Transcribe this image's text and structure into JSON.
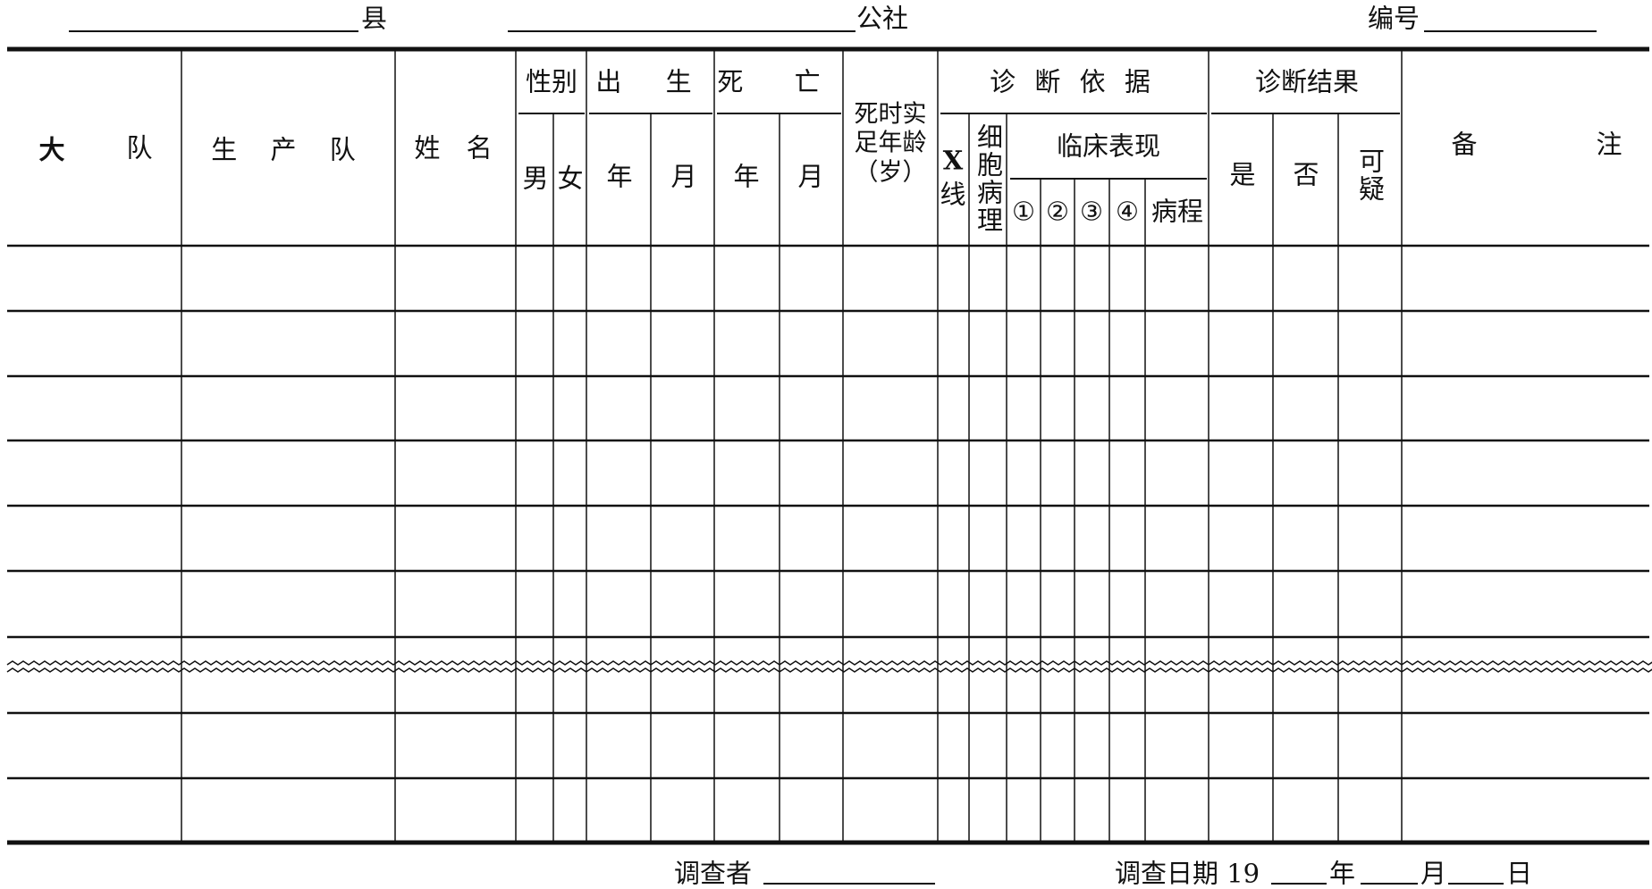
{
  "header": {
    "county": "县",
    "commune": "公社",
    "serial_no": "编号"
  },
  "columns": {
    "brigade": [
      "大",
      "队"
    ],
    "team": "生 产 队",
    "name": "姓 名",
    "sex": "性别",
    "male": "男",
    "female": "女",
    "birth": "出 生",
    "birth_year": "年",
    "birth_month": "月",
    "death": "死 亡",
    "death_year": "年",
    "death_month": "月",
    "age_at_death": [
      "死时实",
      "足年龄",
      "（岁）"
    ],
    "diag_basis": "诊 断 依 据",
    "xray_x": "X",
    "xray_line": "线",
    "cytopathology": "细胞病理",
    "clinical": "临床表现",
    "clinical_items": [
      "①",
      "②",
      "③",
      "④"
    ],
    "course": "病程",
    "diag_result": "诊断结果",
    "yes": "是",
    "no": "否",
    "suspect": "可疑",
    "remarks": [
      "备",
      "注"
    ]
  },
  "footer": {
    "investigator": "调查者",
    "date_prefix": "调查日期 19",
    "year": "年",
    "month": "月",
    "day": "日"
  }
}
